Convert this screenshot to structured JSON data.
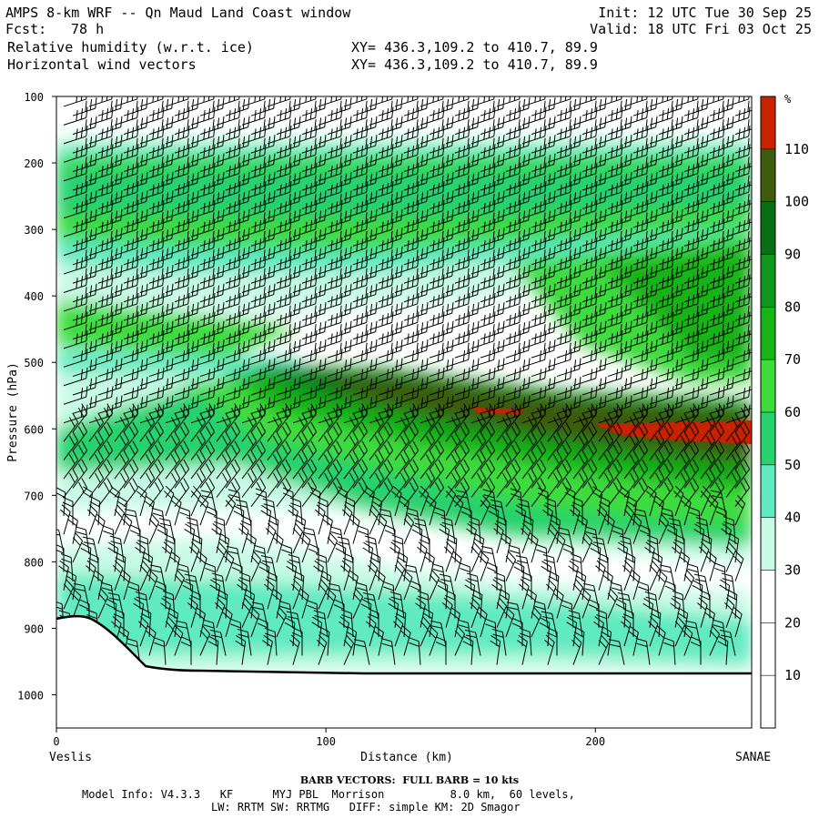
{
  "header": {
    "title": "AMPS 8-km WRF -- Qn Maud Land Coast window",
    "init": "Init: 12 UTC Tue 30 Sep 25",
    "fcst_label": "Fcst:",
    "fcst_value": "78 h",
    "valid": "Valid: 18 UTC Fri 03 Oct 25",
    "field1": "Relative humidity (w.r.t. ice)",
    "field2": "Horizontal wind vectors",
    "xy1": "XY= 436.3,109.2 to 410.7, 89.9",
    "xy2": "XY= 436.3,109.2 to 410.7, 89.9"
  },
  "footer": {
    "barb_note": "BARB VECTORS:  FULL BARB = 10 kts",
    "model_line": "Model Info: V4.3.3   KF      MYJ PBL  Morrison          8.0 km,  60 levels,",
    "physics_line": "LW: RRTM SW: RRTMG   DIFF: simple KM: 2D Smagor"
  },
  "colors": {
    "rh_levels": [
      "#ffffff",
      "#ffffff",
      "#ffffff",
      "#c8fae6",
      "#5eeac0",
      "#28d26e",
      "#3cdc3c",
      "#16b416",
      "#10961c",
      "#0a6e14",
      "#3e5a0c",
      "#c82200"
    ]
  },
  "chart_data": {
    "type": "heatmap",
    "title": "Relative humidity (w.r.t. ice) and horizontal wind vectors",
    "xlabel": "Distance (km)",
    "ylabel": "Pressure (hPa)",
    "x_left_label": "Veslis",
    "x_right_label": "SANAE",
    "xlim": [
      0,
      258
    ],
    "ylim": [
      1050,
      100
    ],
    "x_ticks": [
      0,
      100,
      200
    ],
    "y_ticks": [
      100,
      200,
      300,
      400,
      500,
      600,
      700,
      800,
      900,
      1000
    ],
    "colorbar": {
      "unit": "%",
      "levels": [
        0,
        10,
        20,
        30,
        40,
        50,
        60,
        70,
        80,
        90,
        100,
        110
      ],
      "tick_labels": [
        "10",
        "20",
        "30",
        "40",
        "50",
        "60",
        "70",
        "80",
        "90",
        "100",
        "110"
      ]
    },
    "terrain_profile_hpa": [
      [
        0,
        885
      ],
      [
        12,
        880
      ],
      [
        25,
        905
      ],
      [
        35,
        945
      ],
      [
        50,
        965
      ],
      [
        70,
        964
      ],
      [
        100,
        968
      ],
      [
        150,
        968
      ],
      [
        258,
        968
      ]
    ],
    "rh_features": [
      {
        "name": "upper moist layer",
        "value": 70,
        "p_top": 165,
        "p_bottom": 300,
        "x": [
          0,
          258
        ]
      },
      {
        "name": "lower-left moist band",
        "value": 65,
        "p_top": 390,
        "p_bottom": 470,
        "x": [
          0,
          100
        ]
      },
      {
        "name": "sloping moist band",
        "value": 80,
        "p_top_left": 500,
        "p_top_right": 545,
        "p_bottom_left": 560,
        "p_bottom_right": 690,
        "x": [
          20,
          258
        ]
      },
      {
        "name": "saturated core",
        "value": 95,
        "p_top": 510,
        "p_bottom": 650,
        "x": [
          75,
          258
        ]
      },
      {
        "name": "supersaturated pocket",
        "value": 112,
        "p_top": 585,
        "p_bottom": 620,
        "x": [
          200,
          258
        ]
      },
      {
        "name": "upper right moist region",
        "value": 85,
        "p_top": 300,
        "p_bottom": 480,
        "x": [
          210,
          258
        ]
      },
      {
        "name": "boundary layer moisture",
        "value": 45,
        "p_top": 860,
        "p_bottom": 960,
        "x": [
          0,
          258
        ]
      }
    ],
    "wind_summary": "Barbs: westerly 20-40 kt aloft (100-700 hPa), light and variable 10-20 kt in the boundary layer below 750 hPa"
  }
}
